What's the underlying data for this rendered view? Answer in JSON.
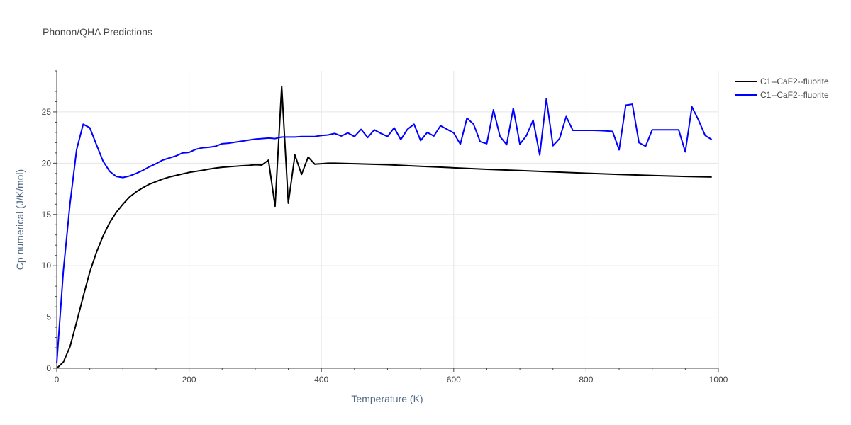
{
  "chart_data": {
    "type": "line",
    "title": "Phonon/QHA Predictions",
    "xlabel": "Temperature (K)",
    "ylabel": "Cp numerical (J/K/mol)",
    "xlim": [
      0,
      1000
    ],
    "ylim": [
      0,
      29
    ],
    "xticks": [
      0,
      200,
      400,
      600,
      800,
      1000
    ],
    "yticks": [
      0,
      5,
      10,
      15,
      20,
      25
    ],
    "grid": true,
    "legend_position": "top-right",
    "series": [
      {
        "name": "C1--CaF2--fluorite",
        "color": "#000000",
        "x": [
          0,
          10,
          20,
          30,
          40,
          50,
          60,
          70,
          80,
          90,
          100,
          110,
          120,
          130,
          140,
          150,
          160,
          170,
          180,
          190,
          200,
          210,
          220,
          230,
          240,
          250,
          260,
          270,
          280,
          290,
          300,
          310,
          320,
          330,
          340,
          350,
          360,
          370,
          380,
          390,
          400,
          410,
          420,
          450,
          500,
          550,
          600,
          650,
          700,
          750,
          800,
          850,
          900,
          950,
          990
        ],
        "values": [
          0,
          0.6,
          2.1,
          4.5,
          7.0,
          9.4,
          11.3,
          12.9,
          14.2,
          15.2,
          16.0,
          16.7,
          17.2,
          17.6,
          17.95,
          18.2,
          18.45,
          18.65,
          18.8,
          18.95,
          19.1,
          19.2,
          19.3,
          19.42,
          19.52,
          19.6,
          19.65,
          19.7,
          19.75,
          19.78,
          19.85,
          19.82,
          20.3,
          15.8,
          27.5,
          16.1,
          20.8,
          18.9,
          20.6,
          19.9,
          19.95,
          20.0,
          20.0,
          19.95,
          19.85,
          19.7,
          19.55,
          19.4,
          19.28,
          19.15,
          19.02,
          18.9,
          18.8,
          18.7,
          18.65
        ]
      },
      {
        "name": "C1--CaF2--fluorite",
        "color": "#0000ff",
        "x": [
          0,
          10,
          20,
          30,
          40,
          50,
          60,
          70,
          80,
          90,
          100,
          110,
          120,
          130,
          140,
          150,
          160,
          170,
          180,
          190,
          200,
          210,
          220,
          230,
          240,
          250,
          260,
          270,
          280,
          290,
          300,
          310,
          320,
          330,
          340,
          350,
          360,
          370,
          380,
          390,
          400,
          410,
          420,
          430,
          440,
          450,
          460,
          470,
          480,
          490,
          500,
          510,
          520,
          530,
          540,
          550,
          560,
          570,
          580,
          590,
          600,
          610,
          620,
          630,
          640,
          650,
          660,
          670,
          680,
          690,
          700,
          710,
          720,
          730,
          740,
          750,
          760,
          770,
          780,
          790,
          800,
          810,
          820,
          830,
          840,
          850,
          860,
          870,
          880,
          890,
          900,
          910,
          920,
          930,
          940,
          950,
          960,
          970,
          980,
          990
        ],
        "values": [
          0.5,
          9.5,
          16.0,
          21.3,
          23.8,
          23.45,
          21.8,
          20.2,
          19.2,
          18.7,
          18.6,
          18.75,
          19.0,
          19.3,
          19.65,
          19.95,
          20.3,
          20.5,
          20.7,
          21.0,
          21.05,
          21.35,
          21.5,
          21.55,
          21.65,
          21.9,
          21.95,
          22.05,
          22.15,
          22.25,
          22.35,
          22.4,
          22.45,
          22.4,
          22.55,
          22.55,
          22.55,
          22.6,
          22.6,
          22.6,
          22.7,
          22.75,
          22.9,
          22.65,
          22.95,
          22.6,
          23.3,
          22.5,
          23.25,
          22.9,
          22.6,
          23.45,
          22.3,
          23.3,
          23.8,
          22.2,
          23.0,
          22.65,
          23.65,
          23.3,
          22.95,
          21.85,
          24.4,
          23.8,
          22.1,
          21.9,
          25.2,
          22.6,
          21.8,
          25.35,
          21.85,
          22.7,
          24.2,
          20.8,
          26.3,
          21.7,
          22.4,
          24.55,
          23.2,
          23.2,
          23.2,
          23.2,
          23.18,
          23.15,
          23.1,
          21.3,
          25.65,
          25.75,
          22.0,
          21.65,
          23.25,
          23.25,
          23.25,
          23.25,
          23.25,
          21.1,
          25.5,
          24.2,
          22.7,
          22.3
        ]
      }
    ]
  }
}
